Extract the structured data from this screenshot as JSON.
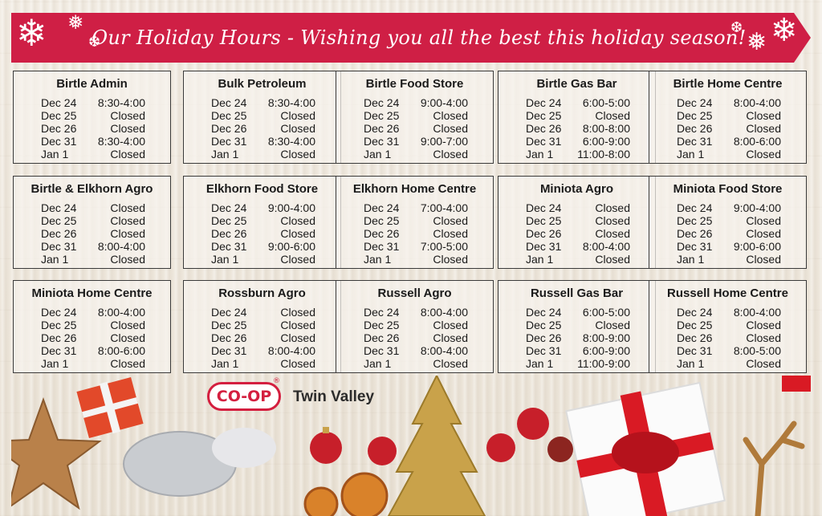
{
  "banner": {
    "title": "Our Holiday Hours - Wishing you all the best this holiday season!"
  },
  "brand": {
    "logo_text": "CO-OP",
    "logo_mark": "®",
    "name": "Twin Valley"
  },
  "colors": {
    "banner_red": "#cf1f45",
    "logo_red": "#d41f3f"
  },
  "stores": [
    {
      "name": "Birtle Admin",
      "hours": [
        [
          "Dec 24",
          "8:30-4:00"
        ],
        [
          "Dec 25",
          "Closed"
        ],
        [
          "Dec 26",
          "Closed"
        ],
        [
          "Dec 31",
          "8:30-4:00"
        ],
        [
          "Jan 1",
          "Closed"
        ]
      ]
    },
    {
      "name": "Bulk Petroleum",
      "hours": [
        [
          "Dec 24",
          "8:30-4:00"
        ],
        [
          "Dec 25",
          "Closed"
        ],
        [
          "Dec 26",
          "Closed"
        ],
        [
          "Dec 31",
          "8:30-4:00"
        ],
        [
          "Jan 1",
          "Closed"
        ]
      ]
    },
    {
      "name": "Birtle Food Store",
      "hours": [
        [
          "Dec 24",
          "9:00-4:00"
        ],
        [
          "Dec 25",
          "Closed"
        ],
        [
          "Dec 26",
          "Closed"
        ],
        [
          "Dec 31",
          "9:00-7:00"
        ],
        [
          "Jan 1",
          "Closed"
        ]
      ]
    },
    {
      "name": "Birtle Gas Bar",
      "hours": [
        [
          "Dec 24",
          "6:00-5:00"
        ],
        [
          "Dec 25",
          "Closed"
        ],
        [
          "Dec 26",
          "8:00-8:00"
        ],
        [
          "Dec 31",
          "6:00-9:00"
        ],
        [
          "Jan 1",
          "11:00-8:00"
        ]
      ]
    },
    {
      "name": "Birtle Home Centre",
      "hours": [
        [
          "Dec 24",
          "8:00-4:00"
        ],
        [
          "Dec 25",
          "Closed"
        ],
        [
          "Dec 26",
          "Closed"
        ],
        [
          "Dec 31",
          "8:00-6:00"
        ],
        [
          "Jan 1",
          "Closed"
        ]
      ]
    },
    {
      "name": "Birtle & Elkhorn Agro",
      "hours": [
        [
          "Dec 24",
          "Closed"
        ],
        [
          "Dec 25",
          "Closed"
        ],
        [
          "Dec 26",
          "Closed"
        ],
        [
          "Dec 31",
          "8:00-4:00"
        ],
        [
          "Jan 1",
          "Closed"
        ]
      ]
    },
    {
      "name": "Elkhorn Food Store",
      "hours": [
        [
          "Dec 24",
          "9:00-4:00"
        ],
        [
          "Dec 25",
          "Closed"
        ],
        [
          "Dec 26",
          "Closed"
        ],
        [
          "Dec 31",
          "9:00-6:00"
        ],
        [
          "Jan 1",
          "Closed"
        ]
      ]
    },
    {
      "name": "Elkhorn Home Centre",
      "hours": [
        [
          "Dec 24",
          "7:00-4:00"
        ],
        [
          "Dec 25",
          "Closed"
        ],
        [
          "Dec 26",
          "Closed"
        ],
        [
          "Dec 31",
          "7:00-5:00"
        ],
        [
          "Jan 1",
          "Closed"
        ]
      ]
    },
    {
      "name": "Miniota Agro",
      "hours": [
        [
          "Dec 24",
          "Closed"
        ],
        [
          "Dec 25",
          "Closed"
        ],
        [
          "Dec 26",
          "Closed"
        ],
        [
          "Dec 31",
          "8:00-4:00"
        ],
        [
          "Jan 1",
          "Closed"
        ]
      ]
    },
    {
      "name": "Miniota Food Store",
      "hours": [
        [
          "Dec 24",
          "9:00-4:00"
        ],
        [
          "Dec 25",
          "Closed"
        ],
        [
          "Dec 26",
          "Closed"
        ],
        [
          "Dec 31",
          "9:00-6:00"
        ],
        [
          "Jan 1",
          "Closed"
        ]
      ]
    },
    {
      "name": "Miniota Home Centre",
      "hours": [
        [
          "Dec 24",
          "8:00-4:00"
        ],
        [
          "Dec 25",
          "Closed"
        ],
        [
          "Dec 26",
          "Closed"
        ],
        [
          "Dec 31",
          "8:00-6:00"
        ],
        [
          "Jan 1",
          "Closed"
        ]
      ]
    },
    {
      "name": "Rossburn Agro",
      "hours": [
        [
          "Dec 24",
          "Closed"
        ],
        [
          "Dec 25",
          "Closed"
        ],
        [
          "Dec 26",
          "Closed"
        ],
        [
          "Dec 31",
          "8:00-4:00"
        ],
        [
          "Jan 1",
          "Closed"
        ]
      ]
    },
    {
      "name": "Russell Agro",
      "hours": [
        [
          "Dec 24",
          "8:00-4:00"
        ],
        [
          "Dec 25",
          "Closed"
        ],
        [
          "Dec 26",
          "Closed"
        ],
        [
          "Dec 31",
          "8:00-4:00"
        ],
        [
          "Jan 1",
          "Closed"
        ]
      ]
    },
    {
      "name": "Russell Gas Bar",
      "hours": [
        [
          "Dec 24",
          "6:00-5:00"
        ],
        [
          "Dec 25",
          "Closed"
        ],
        [
          "Dec 26",
          "8:00-9:00"
        ],
        [
          "Dec 31",
          "6:00-9:00"
        ],
        [
          "Jan 1",
          "11:00-9:00"
        ]
      ]
    },
    {
      "name": "Russell Home Centre",
      "hours": [
        [
          "Dec 24",
          "8:00-4:00"
        ],
        [
          "Dec 25",
          "Closed"
        ],
        [
          "Dec 26",
          "Closed"
        ],
        [
          "Dec 31",
          "8:00-5:00"
        ],
        [
          "Jan 1",
          "Closed"
        ]
      ]
    }
  ]
}
